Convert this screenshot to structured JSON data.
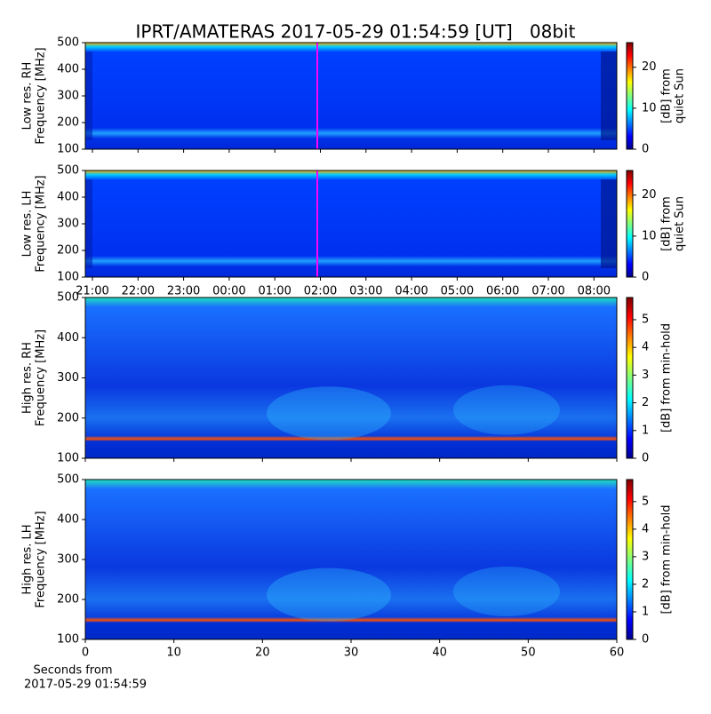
{
  "chart_data": [
    {
      "type": "heatmap",
      "title": "IPRT/AMATERAS 2017-05-29 01:54:59 [UT]   08bit",
      "ylabel": [
        "Low res. RH",
        "Frequency [MHz]"
      ],
      "ylim": [
        100,
        500
      ],
      "yticks": [
        100,
        200,
        300,
        400,
        500
      ],
      "clabel": [
        "[dB] from",
        "quiet Sun"
      ],
      "clim": [
        0,
        26
      ],
      "cticks": [
        0,
        10,
        20
      ],
      "colormap": "jet"
    },
    {
      "type": "heatmap",
      "ylabel": [
        "Low res. LH",
        "Frequency [MHz]"
      ],
      "ylim": [
        100,
        500
      ],
      "yticks": [
        100,
        200,
        300,
        400,
        500
      ],
      "xticks": [
        "21:00",
        "22:00",
        "23:00",
        "00:00",
        "01:00",
        "02:00",
        "03:00",
        "04:00",
        "05:00",
        "06:00",
        "07:00",
        "08:00"
      ],
      "clabel": [
        "[dB] from",
        "quiet Sun"
      ],
      "clim": [
        0,
        26
      ],
      "cticks": [
        0,
        10,
        20
      ],
      "colormap": "jet"
    },
    {
      "type": "heatmap",
      "ylabel": [
        "High res. RH",
        "Frequency [MHz]"
      ],
      "ylim": [
        100,
        500
      ],
      "yticks": [
        100,
        200,
        300,
        400,
        500
      ],
      "xlim": [
        0,
        60
      ],
      "clabel": [
        "[dB] from min-hold"
      ],
      "clim": [
        0,
        5.8
      ],
      "cticks": [
        0,
        1,
        2,
        3,
        4,
        5
      ],
      "colormap": "jet"
    },
    {
      "type": "heatmap",
      "ylabel": [
        "High res. LH",
        "Frequency [MHz]"
      ],
      "ylim": [
        100,
        500
      ],
      "yticks": [
        100,
        200,
        300,
        400,
        500
      ],
      "xlim": [
        0,
        60
      ],
      "xticks": [
        0,
        10,
        20,
        30,
        40,
        50,
        60
      ],
      "xlabel": [
        "Seconds from",
        "2017-05-29 01:54:59"
      ],
      "clabel": [
        "[dB] from min-hold"
      ],
      "clim": [
        0,
        5.8
      ],
      "cticks": [
        0,
        1,
        2,
        3,
        4,
        5
      ],
      "colormap": "jet"
    }
  ]
}
